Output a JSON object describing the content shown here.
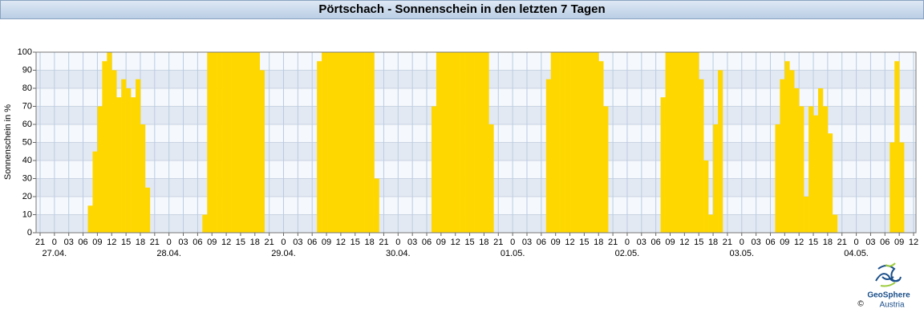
{
  "chart_data": {
    "type": "bar",
    "title": "Pörtschach - Sonnenschein in den letzten 7 Tagen",
    "ylabel": "Sonnenschein in %",
    "color": "#ffd700",
    "grid": true,
    "xlim": [
      0,
      183
    ],
    "ylim": [
      0,
      100
    ],
    "yticks": [
      0,
      10,
      20,
      30,
      40,
      50,
      60,
      70,
      80,
      90,
      100
    ],
    "xticks": [
      {
        "value": 0,
        "label": "21"
      },
      {
        "value": 3,
        "label": "0"
      },
      {
        "value": 6,
        "label": "03"
      },
      {
        "value": 9,
        "label": "06"
      },
      {
        "value": 12,
        "label": "09"
      },
      {
        "value": 15,
        "label": "12"
      },
      {
        "value": 18,
        "label": "15"
      },
      {
        "value": 21,
        "label": "18"
      },
      {
        "value": 24,
        "label": "21"
      },
      {
        "value": 27,
        "label": "0"
      },
      {
        "value": 30,
        "label": "03"
      },
      {
        "value": 33,
        "label": "06"
      },
      {
        "value": 36,
        "label": "09"
      },
      {
        "value": 39,
        "label": "12"
      },
      {
        "value": 42,
        "label": "15"
      },
      {
        "value": 45,
        "label": "18"
      },
      {
        "value": 48,
        "label": "21"
      },
      {
        "value": 51,
        "label": "0"
      },
      {
        "value": 54,
        "label": "03"
      },
      {
        "value": 57,
        "label": "06"
      },
      {
        "value": 60,
        "label": "09"
      },
      {
        "value": 63,
        "label": "12"
      },
      {
        "value": 66,
        "label": "15"
      },
      {
        "value": 69,
        "label": "18"
      },
      {
        "value": 72,
        "label": "21"
      },
      {
        "value": 75,
        "label": "0"
      },
      {
        "value": 78,
        "label": "03"
      },
      {
        "value": 81,
        "label": "06"
      },
      {
        "value": 84,
        "label": "09"
      },
      {
        "value": 87,
        "label": "12"
      },
      {
        "value": 90,
        "label": "15"
      },
      {
        "value": 93,
        "label": "18"
      },
      {
        "value": 96,
        "label": "21"
      },
      {
        "value": 99,
        "label": "0"
      },
      {
        "value": 102,
        "label": "03"
      },
      {
        "value": 105,
        "label": "06"
      },
      {
        "value": 108,
        "label": "09"
      },
      {
        "value": 111,
        "label": "12"
      },
      {
        "value": 114,
        "label": "15"
      },
      {
        "value": 117,
        "label": "18"
      },
      {
        "value": 120,
        "label": "21"
      },
      {
        "value": 123,
        "label": "0"
      },
      {
        "value": 126,
        "label": "03"
      },
      {
        "value": 129,
        "label": "06"
      },
      {
        "value": 132,
        "label": "09"
      },
      {
        "value": 135,
        "label": "12"
      },
      {
        "value": 138,
        "label": "15"
      },
      {
        "value": 141,
        "label": "18"
      },
      {
        "value": 144,
        "label": "21"
      },
      {
        "value": 147,
        "label": "0"
      },
      {
        "value": 150,
        "label": "03"
      },
      {
        "value": 153,
        "label": "06"
      },
      {
        "value": 156,
        "label": "09"
      },
      {
        "value": 159,
        "label": "12"
      },
      {
        "value": 162,
        "label": "15"
      },
      {
        "value": 165,
        "label": "18"
      },
      {
        "value": 168,
        "label": "21"
      },
      {
        "value": 171,
        "label": "0"
      },
      {
        "value": 174,
        "label": "03"
      },
      {
        "value": 177,
        "label": "06"
      },
      {
        "value": 180,
        "label": "09"
      },
      {
        "value": 183,
        "label": "12"
      }
    ],
    "date_labels": [
      {
        "value": 3,
        "label": "27.04."
      },
      {
        "value": 27,
        "label": "28.04."
      },
      {
        "value": 51,
        "label": "29.04."
      },
      {
        "value": 75,
        "label": "30.04."
      },
      {
        "value": 99,
        "label": "01.05."
      },
      {
        "value": 123,
        "label": "02.05."
      },
      {
        "value": 147,
        "label": "03.05."
      },
      {
        "value": 171,
        "label": "04.05."
      }
    ],
    "x": [
      0,
      1,
      2,
      3,
      4,
      5,
      6,
      7,
      8,
      9,
      10,
      11,
      12,
      13,
      14,
      15,
      16,
      17,
      18,
      19,
      20,
      21,
      22,
      23,
      24,
      25,
      26,
      27,
      28,
      29,
      30,
      31,
      32,
      33,
      34,
      35,
      36,
      37,
      38,
      39,
      40,
      41,
      42,
      43,
      44,
      45,
      46,
      47,
      48,
      49,
      50,
      51,
      52,
      53,
      54,
      55,
      56,
      57,
      58,
      59,
      60,
      61,
      62,
      63,
      64,
      65,
      66,
      67,
      68,
      69,
      70,
      71,
      72,
      73,
      74,
      75,
      76,
      77,
      78,
      79,
      80,
      81,
      82,
      83,
      84,
      85,
      86,
      87,
      88,
      89,
      90,
      91,
      92,
      93,
      94,
      95,
      96,
      97,
      98,
      99,
      100,
      101,
      102,
      103,
      104,
      105,
      106,
      107,
      108,
      109,
      110,
      111,
      112,
      113,
      114,
      115,
      116,
      117,
      118,
      119,
      120,
      121,
      122,
      123,
      124,
      125,
      126,
      127,
      128,
      129,
      130,
      131,
      132,
      133,
      134,
      135,
      136,
      137,
      138,
      139,
      140,
      141,
      142,
      143,
      144,
      145,
      146,
      147,
      148,
      149,
      150,
      151,
      152,
      153,
      154,
      155,
      156,
      157,
      158,
      159,
      160,
      161,
      162,
      163,
      164,
      165,
      166,
      167,
      168,
      169,
      170,
      171,
      172,
      173,
      174,
      175,
      176,
      177,
      178,
      179,
      180,
      181,
      182
    ],
    "values": [
      0,
      0,
      0,
      0,
      0,
      0,
      0,
      0,
      0,
      0,
      15,
      45,
      70,
      95,
      100,
      90,
      75,
      85,
      80,
      75,
      85,
      60,
      25,
      0,
      0,
      0,
      0,
      0,
      0,
      0,
      0,
      0,
      0,
      0,
      10,
      100,
      100,
      100,
      100,
      100,
      100,
      100,
      100,
      100,
      100,
      100,
      90,
      0,
      0,
      0,
      0,
      0,
      0,
      0,
      0,
      0,
      0,
      0,
      95,
      100,
      100,
      100,
      100,
      100,
      100,
      100,
      100,
      100,
      100,
      100,
      30,
      0,
      0,
      0,
      0,
      0,
      0,
      0,
      0,
      0,
      0,
      0,
      70,
      100,
      100,
      100,
      100,
      100,
      100,
      100,
      100,
      100,
      100,
      100,
      60,
      0,
      0,
      0,
      0,
      0,
      0,
      0,
      0,
      0,
      0,
      0,
      85,
      100,
      100,
      100,
      100,
      100,
      100,
      100,
      100,
      100,
      100,
      95,
      70,
      0,
      0,
      0,
      0,
      0,
      0,
      0,
      0,
      0,
      0,
      0,
      75,
      100,
      100,
      100,
      100,
      100,
      100,
      100,
      85,
      40,
      10,
      60,
      90,
      0,
      0,
      0,
      0,
      0,
      0,
      0,
      0,
      0,
      0,
      0,
      60,
      85,
      95,
      90,
      80,
      70,
      20,
      70,
      65,
      80,
      70,
      55,
      10,
      0,
      0,
      0,
      0,
      0,
      0,
      0,
      0,
      0,
      0,
      0,
      50,
      95,
      50,
      0,
      0
    ]
  },
  "logo": {
    "name": "GeoSphere",
    "sub": "Austria",
    "copyright": "©"
  }
}
